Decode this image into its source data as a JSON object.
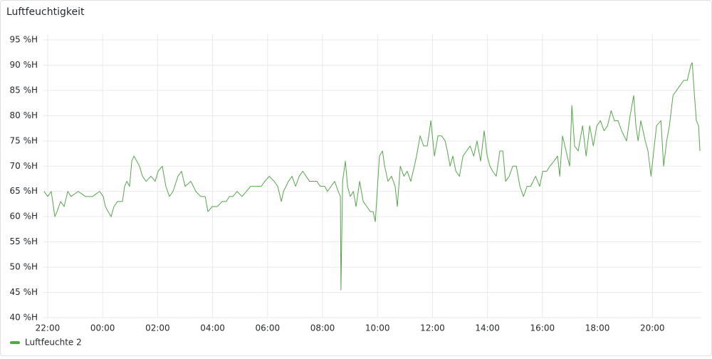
{
  "chart_data": {
    "type": "line",
    "title": "Luftfeuchtigkeit",
    "xlim": [
      -0.18,
      23.78
    ],
    "xticks": [
      {
        "value": 0,
        "label": "22:00"
      },
      {
        "value": 2,
        "label": "00:00"
      },
      {
        "value": 4,
        "label": "02:00"
      },
      {
        "value": 6,
        "label": "04:00"
      },
      {
        "value": 8,
        "label": "06:00"
      },
      {
        "value": 10,
        "label": "08:00"
      },
      {
        "value": 12,
        "label": "10:00"
      },
      {
        "value": 14,
        "label": "12:00"
      },
      {
        "value": 16,
        "label": "14:00"
      },
      {
        "value": 18,
        "label": "16:00"
      },
      {
        "value": 20,
        "label": "18:00"
      },
      {
        "value": 22,
        "label": "20:00"
      }
    ],
    "ylim": [
      40,
      95
    ],
    "yticks": [
      {
        "value": 40,
        "label": "40 %H"
      },
      {
        "value": 45,
        "label": "45 %H"
      },
      {
        "value": 50,
        "label": "50 %H"
      },
      {
        "value": 55,
        "label": "55 %H"
      },
      {
        "value": 60,
        "label": "60 %H"
      },
      {
        "value": 65,
        "label": "65 %H"
      },
      {
        "value": 70,
        "label": "70 %H"
      },
      {
        "value": 75,
        "label": "75 %H"
      },
      {
        "value": 80,
        "label": "80 %H"
      },
      {
        "value": 85,
        "label": "85 %H"
      },
      {
        "value": 90,
        "label": "90 %H"
      },
      {
        "value": 95,
        "label": "95 %H"
      }
    ],
    "grid": true,
    "x": [
      -0.13,
      0,
      0.13,
      0.21,
      0.26,
      0.34,
      0.47,
      0.6,
      0.73,
      0.85,
      1.11,
      1.37,
      1.63,
      1.89,
      2.02,
      2.1,
      2.2,
      2.31,
      2.41,
      2.54,
      2.72,
      2.8,
      2.88,
      2.98,
      3.06,
      3.14,
      3.24,
      3.34,
      3.45,
      3.58,
      3.76,
      3.91,
      4.02,
      4.17,
      4.3,
      4.43,
      4.56,
      4.74,
      4.87,
      5.0,
      5.21,
      5.39,
      5.57,
      5.73,
      5.83,
      5.99,
      6.17,
      6.35,
      6.5,
      6.61,
      6.74,
      6.89,
      7.07,
      7.23,
      7.38,
      7.59,
      7.77,
      7.9,
      8.06,
      8.24,
      8.37,
      8.5,
      8.58,
      8.76,
      8.89,
      9.02,
      9.15,
      9.28,
      9.4,
      9.53,
      9.66,
      9.79,
      9.92,
      10.08,
      10.18,
      10.31,
      10.44,
      10.57,
      10.65,
      10.67,
      10.73,
      10.83,
      10.91,
      11.01,
      11.12,
      11.22,
      11.35,
      11.48,
      11.61,
      11.74,
      11.84,
      11.92,
      12.0,
      12.07,
      12.18,
      12.26,
      12.38,
      12.51,
      12.64,
      12.72,
      12.83,
      12.96,
      13.08,
      13.21,
      13.34,
      13.42,
      13.55,
      13.68,
      13.81,
      13.89,
      13.94,
      14.07,
      14.2,
      14.33,
      14.46,
      14.54,
      14.64,
      14.74,
      14.85,
      14.98,
      15.11,
      15.24,
      15.37,
      15.5,
      15.62,
      15.75,
      15.88,
      15.99,
      16.09,
      16.19,
      16.32,
      16.45,
      16.56,
      16.66,
      16.79,
      16.92,
      17.05,
      17.18,
      17.31,
      17.44,
      17.57,
      17.75,
      17.9,
      18.01,
      18.16,
      18.27,
      18.42,
      18.55,
      18.63,
      18.73,
      18.86,
      18.99,
      19.07,
      19.17,
      19.3,
      19.46,
      19.59,
      19.72,
      19.85,
      19.98,
      20.11,
      20.24,
      20.37,
      20.5,
      20.62,
      20.75,
      20.88,
      21.06,
      21.19,
      21.32,
      21.4,
      21.48,
      21.58,
      21.66,
      21.74,
      21.84,
      21.95,
      22.05,
      22.15,
      22.31,
      22.41,
      22.52,
      22.62,
      22.75,
      22.88,
      23.01,
      23.14,
      23.27,
      23.4,
      23.45,
      23.53,
      23.6,
      23.68,
      23.73
    ],
    "series": [
      {
        "name": "Luftfeuchte 2",
        "color": "#56a64b",
        "values": [
          65,
          64,
          65,
          62,
          60,
          61,
          63,
          62,
          65,
          64,
          65,
          64,
          64,
          65,
          64,
          62,
          61,
          60,
          62,
          63,
          63,
          66,
          67,
          66,
          71,
          72,
          71,
          70,
          68,
          67,
          68,
          67,
          69,
          70,
          66,
          64,
          65,
          68,
          69,
          66,
          67,
          65,
          64,
          64,
          61,
          62,
          62,
          63,
          63,
          64,
          64,
          65,
          64,
          65,
          66,
          66,
          66,
          67,
          68,
          67,
          66,
          63,
          65,
          67,
          68,
          66,
          68,
          69,
          68,
          67,
          67,
          67,
          66,
          66,
          65,
          66,
          67,
          65,
          64,
          45.5,
          67,
          71,
          66,
          64,
          65,
          62,
          67,
          63,
          62,
          61,
          61,
          59,
          66,
          72,
          73,
          70,
          67,
          68,
          66,
          62,
          70,
          68,
          69,
          67,
          70,
          72,
          76,
          74,
          74,
          77,
          79,
          72,
          76,
          76,
          75,
          73,
          70,
          72,
          69,
          68,
          72,
          73,
          74,
          72,
          75,
          71,
          77,
          72,
          70,
          69,
          68,
          73,
          73,
          67,
          68,
          70,
          70,
          66,
          64,
          66,
          66,
          68,
          66,
          69,
          69,
          70,
          71,
          72,
          68,
          76,
          73,
          70,
          82,
          74,
          73,
          78,
          72,
          78,
          74,
          78,
          79,
          77,
          78,
          81,
          79,
          79,
          77,
          75,
          80,
          84,
          78,
          75,
          79,
          77,
          75,
          73,
          68,
          73,
          78,
          79,
          70,
          75,
          78,
          84,
          85,
          86,
          87,
          87,
          90,
          90.5,
          84,
          79,
          78,
          73
        ]
      }
    ]
  }
}
